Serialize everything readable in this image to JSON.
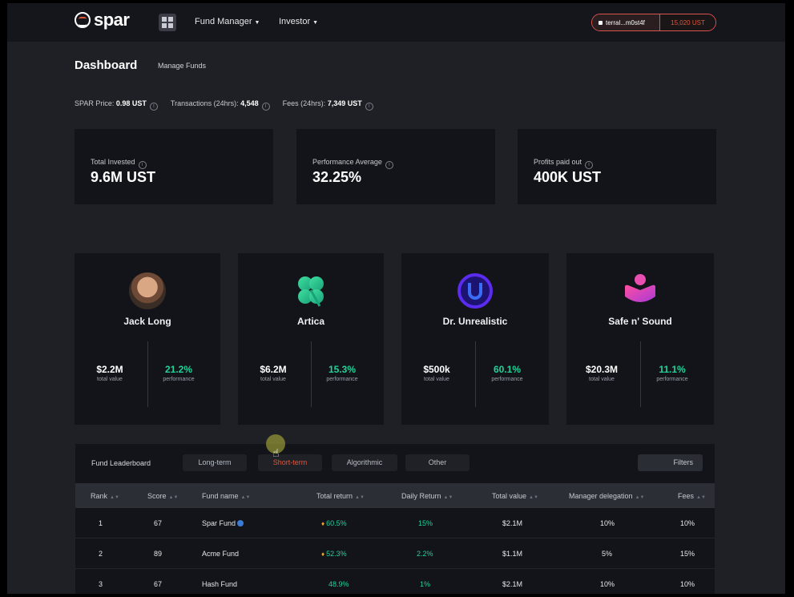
{
  "brand": {
    "name": "spar",
    "accent": "#e0563b",
    "green": "#1fd39a"
  },
  "nav": {
    "fund_manager": "Fund Manager",
    "investor": "Investor",
    "wallet_address": "terral...m0st4f",
    "wallet_balance": "15,020 UST"
  },
  "header": {
    "title": "Dashboard",
    "manage_link": "Manage Funds"
  },
  "stats": {
    "spar_price_label": "SPAR Price:",
    "spar_price": "0.98 UST",
    "tx_label": "Transactions (24hrs):",
    "tx": "4,548",
    "fees_label": "Fees (24hrs):",
    "fees": "7,349 UST"
  },
  "kpis": [
    {
      "label": "Total Invested",
      "value": "9.6M UST"
    },
    {
      "label": "Performance Average",
      "value": "32.25%"
    },
    {
      "label": "Profits paid out",
      "value": "400K UST"
    }
  ],
  "managers": [
    {
      "name": "Jack Long",
      "total_value": "$2.2M",
      "total_value_label": "total value",
      "performance": "21.2%",
      "performance_label": "performance"
    },
    {
      "name": "Artica",
      "total_value": "$6.2M",
      "total_value_label": "total value",
      "performance": "15.3%",
      "performance_label": "performance"
    },
    {
      "name": "Dr. Unrealistic",
      "total_value": "$500k",
      "total_value_label": "total value",
      "performance": "60.1%",
      "performance_label": "performance"
    },
    {
      "name": "Safe n' Sound",
      "total_value": "$20.3M",
      "total_value_label": "total value",
      "performance": "11.1%",
      "performance_label": "performance"
    }
  ],
  "leaderboard": {
    "title": "Fund Leaderboard",
    "tabs": [
      "Long-term",
      "Short-term",
      "Algorithmic",
      "Other"
    ],
    "active_tab": "Short-term",
    "filters": "Filters",
    "columns": [
      "Rank",
      "Score",
      "Fund name",
      "Total return",
      "Daily Return",
      "Total value",
      "Manager delegation",
      "Fees"
    ],
    "rows": [
      {
        "rank": "1",
        "score": "67",
        "fund": "Spar Fund",
        "total_return": "60.5%",
        "daily_return": "15%",
        "total_value": "$2.1M",
        "delegation": "10%",
        "fees": "10%"
      },
      {
        "rank": "2",
        "score": "89",
        "fund": "Acme Fund",
        "total_return": "52.3%",
        "daily_return": "2.2%",
        "total_value": "$1.1M",
        "delegation": "5%",
        "fees": "15%"
      },
      {
        "rank": "3",
        "score": "67",
        "fund": "Hash Fund",
        "total_return": "48.9%",
        "daily_return": "1%",
        "total_value": "$2.1M",
        "delegation": "10%",
        "fees": "10%"
      }
    ]
  }
}
